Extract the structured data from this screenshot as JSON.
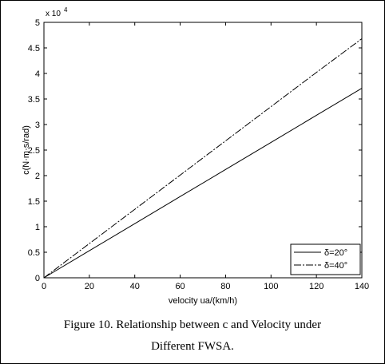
{
  "chart_data": {
    "type": "line",
    "title": "",
    "xlabel": "velocity ua/(km/h)",
    "ylabel": "c(N·m·s/rad)",
    "y_multiplier_label": "x 10",
    "y_multiplier_exponent": "4",
    "xlim": [
      0,
      140
    ],
    "ylim": [
      0,
      5
    ],
    "xticks": [
      "0",
      "20",
      "40",
      "60",
      "80",
      "100",
      "120",
      "140"
    ],
    "yticks": [
      "0",
      "0.5",
      "1",
      "1.5",
      "2",
      "2.5",
      "3",
      "3.5",
      "4",
      "4.5",
      "5"
    ],
    "grid": false,
    "legend_position": "bottom-right",
    "x": [
      0,
      20,
      40,
      60,
      80,
      100,
      120,
      140
    ],
    "series": [
      {
        "name": "δ=20°",
        "values": [
          0,
          0.53,
          1.06,
          1.59,
          2.12,
          2.65,
          3.18,
          3.71
        ]
      },
      {
        "name": "δ=40°",
        "values": [
          0,
          0.67,
          1.34,
          2.01,
          2.68,
          3.35,
          4.02,
          4.68
        ]
      }
    ]
  },
  "caption": {
    "line1": "Figure 10.  Relationship between c and Velocity under",
    "line2": "Different FWSA."
  }
}
